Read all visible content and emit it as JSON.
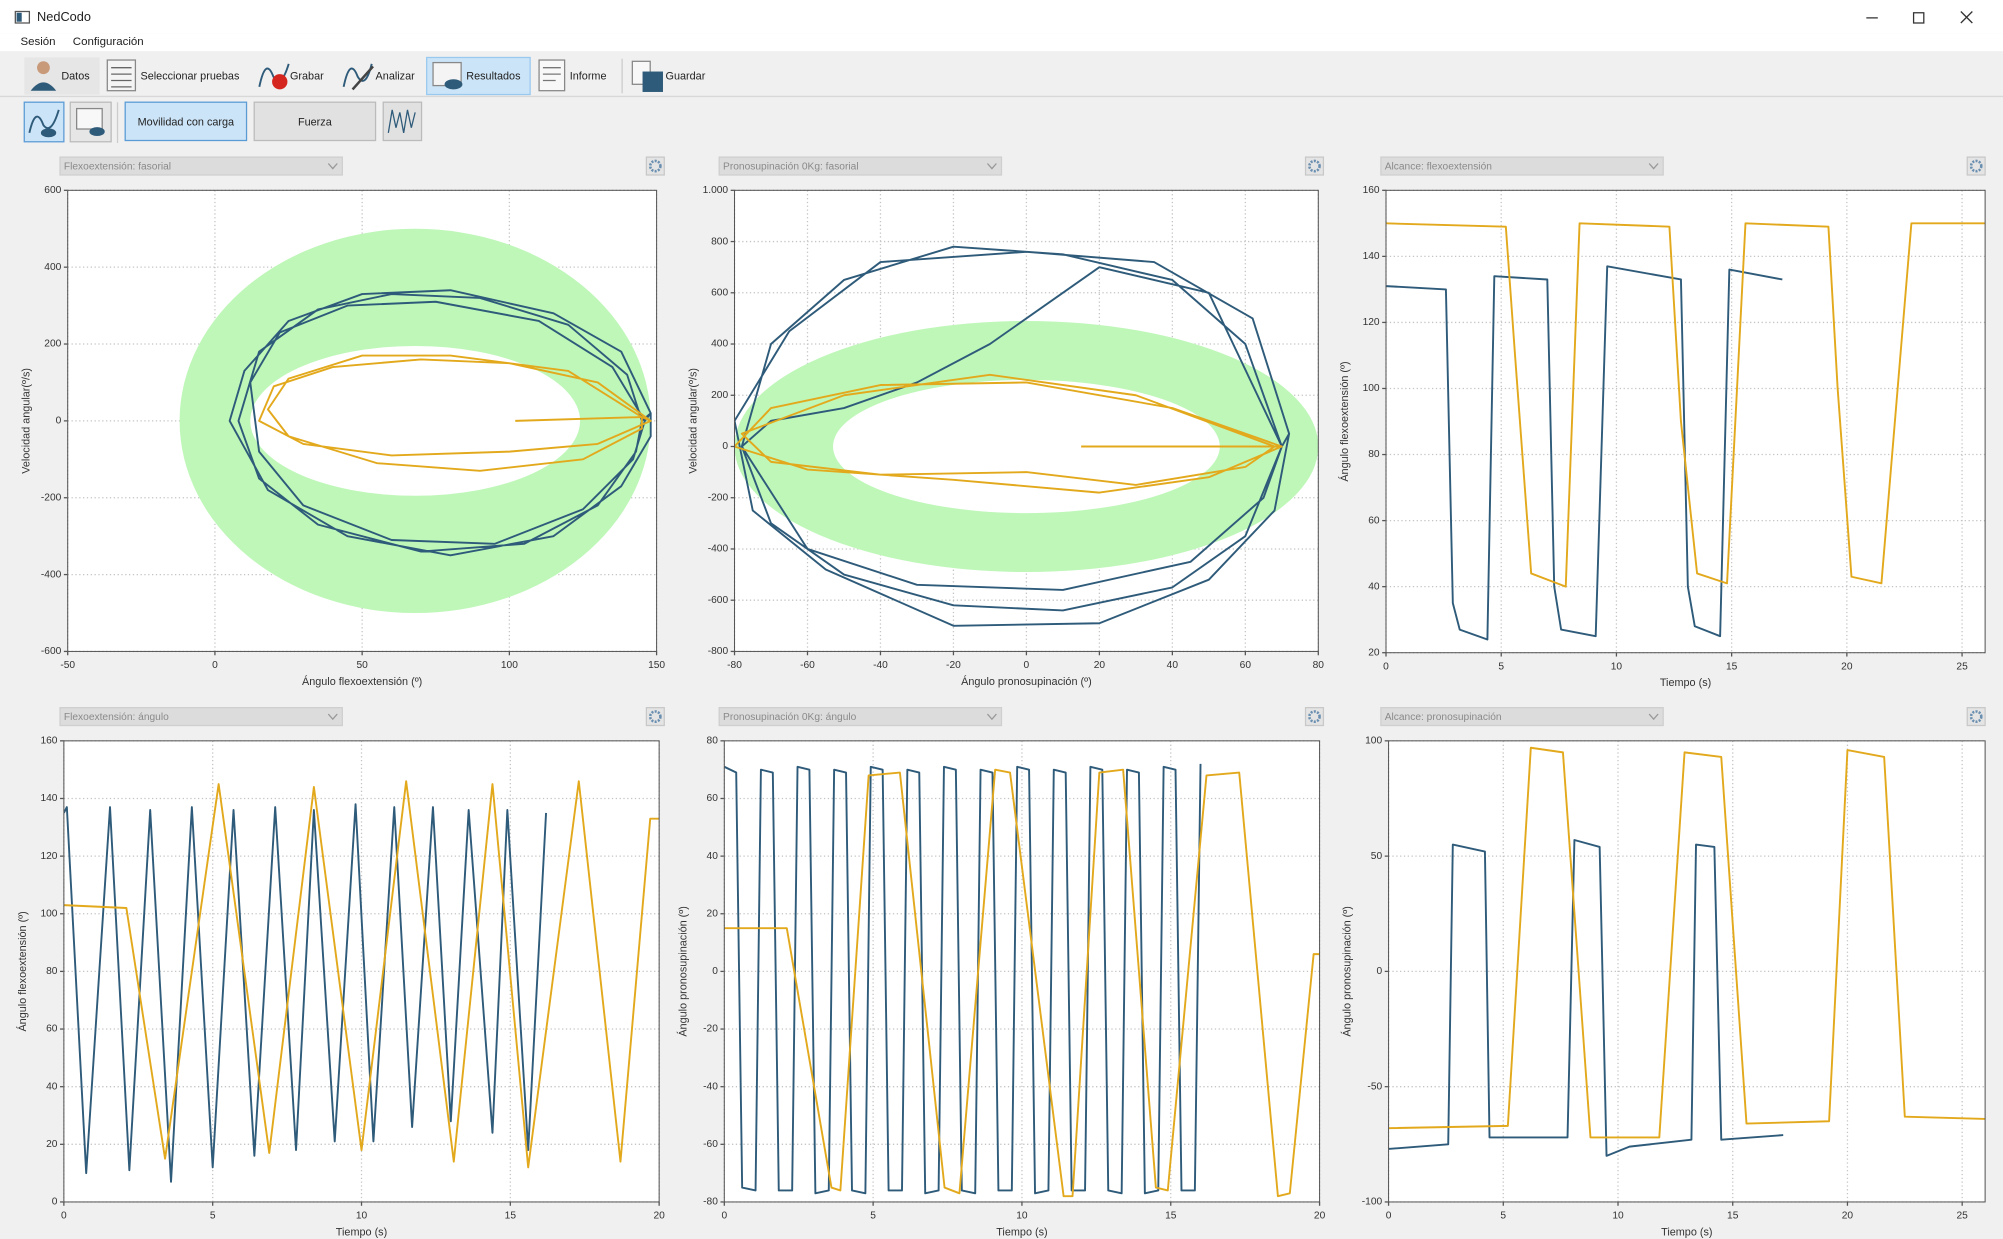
{
  "window": {
    "title": "NedCodo"
  },
  "menu": [
    "Sesión",
    "Configuración"
  ],
  "toolbar": [
    "Datos",
    "Seleccionar pruebas",
    "Grabar",
    "Analizar",
    "Resultados",
    "Informe",
    "Guardar"
  ],
  "tabs": [
    "Movilidad con carga",
    "Fuerza"
  ],
  "chart_data": [
    {
      "type": "line",
      "title": "Flexoextensión: fasorial",
      "x_label": "Ángulo flexoextensión (º)",
      "y_label": "Velocidad angular(º/s)",
      "xlim": [
        -50,
        150
      ],
      "xticks": [
        -50,
        0,
        50,
        100,
        150
      ],
      "ylim": [
        -600,
        600
      ],
      "yticks": [
        -600,
        -400,
        -200,
        0,
        200,
        400,
        600
      ],
      "grid": true,
      "reference_band": {
        "color": "#bff7b9",
        "center": [
          68,
          0
        ],
        "outer_radius": [
          80,
          500
        ],
        "inner_radius": [
          56,
          195
        ]
      },
      "series": [
        {
          "color": "#2f5b7a",
          "x": [
            145,
            140,
            120,
            90,
            60,
            35,
            15,
            8,
            15,
            35,
            70,
            105,
            130,
            143,
            145,
            148,
            138,
            115,
            80,
            50,
            25,
            10,
            5,
            18,
            45,
            80,
            115,
            138,
            148,
            148,
            146,
            135,
            110,
            75,
            45,
            22,
            12,
            15,
            30,
            60,
            95,
            125,
            142,
            146
          ],
          "values": [
            0,
            120,
            250,
            320,
            330,
            290,
            180,
            0,
            -150,
            -270,
            -340,
            -320,
            -220,
            -80,
            0,
            20,
            180,
            280,
            340,
            330,
            260,
            130,
            0,
            -180,
            -300,
            -350,
            -300,
            -170,
            -40,
            20,
            0,
            140,
            260,
            310,
            300,
            230,
            100,
            -80,
            -220,
            -310,
            -320,
            -230,
            -100,
            0
          ]
        },
        {
          "color": "#e3a91d",
          "x": [
            148,
            130,
            100,
            70,
            40,
            20,
            15,
            30,
            60,
            100,
            130,
            148,
            145,
            120,
            80,
            50,
            25,
            18,
            25,
            55,
            90,
            125,
            145,
            145,
            102
          ],
          "values": [
            0,
            100,
            150,
            160,
            140,
            90,
            0,
            -60,
            -90,
            -80,
            -60,
            0,
            10,
            130,
            170,
            170,
            110,
            30,
            -40,
            -110,
            -130,
            -100,
            -20,
            10,
            0
          ]
        }
      ]
    },
    {
      "type": "line",
      "title": "Pronosupinación 0Kg: fasorial",
      "x_label": "Ángulo pronosupinación (º)",
      "y_label": "Velocidad angular(º/s)",
      "xlim": [
        -80,
        80
      ],
      "xticks": [
        -80,
        -60,
        -40,
        -20,
        0,
        20,
        40,
        60,
        80
      ],
      "ylim": [
        -800,
        1000
      ],
      "yticks": [
        -800,
        -600,
        -400,
        -200,
        0,
        200,
        400,
        600,
        800,
        {
          "value": 1000,
          "label": "1.000"
        }
      ],
      "grid": true,
      "reference_band": {
        "color": "#bff7b9",
        "center": [
          0,
          0
        ],
        "outer_radius": [
          80,
          490
        ],
        "inner_radius": [
          53,
          260
        ]
      },
      "series": [
        {
          "color": "#2f5b7a",
          "x": [
            70,
            60,
            40,
            10,
            -20,
            -50,
            -70,
            -78,
            -70,
            -50,
            -20,
            10,
            40,
            60,
            70,
            72,
            62,
            35,
            0,
            -40,
            -65,
            -80,
            -75,
            -55,
            -20,
            20,
            50,
            68,
            72,
            70,
            50,
            20,
            -10,
            -30,
            -50,
            -70,
            -78,
            -60,
            -30,
            10,
            45,
            65,
            70
          ],
          "values": [
            0,
            400,
            650,
            750,
            780,
            650,
            400,
            0,
            -300,
            -500,
            -620,
            -640,
            -550,
            -350,
            0,
            50,
            500,
            720,
            760,
            720,
            450,
            100,
            -250,
            -480,
            -700,
            -690,
            -520,
            -250,
            50,
            0,
            600,
            700,
            400,
            250,
            150,
            100,
            0,
            -400,
            -540,
            -560,
            -450,
            -200,
            0
          ]
        },
        {
          "color": "#e3a91d",
          "x": [
            70,
            40,
            0,
            -40,
            -70,
            -80,
            -60,
            -20,
            20,
            50,
            70,
            68,
            30,
            -10,
            -50,
            -78,
            -70,
            -40,
            0,
            30,
            60,
            68,
            15
          ],
          "values": [
            0,
            150,
            250,
            240,
            150,
            0,
            -90,
            -130,
            -180,
            -120,
            0,
            0,
            200,
            280,
            200,
            50,
            -60,
            -110,
            -100,
            -150,
            -80,
            0,
            0
          ]
        }
      ]
    },
    {
      "type": "line",
      "title": "Alcance: flexoextensión",
      "x_label": "Tiempo (s)",
      "y_label": "Ángulo flexoextensión (º)",
      "xlim": [
        0,
        26
      ],
      "xticks": [
        0,
        5,
        10,
        15,
        20,
        25
      ],
      "ylim": [
        20,
        160
      ],
      "yticks": [
        20,
        40,
        60,
        80,
        100,
        120,
        140,
        160
      ],
      "grid": true,
      "series": [
        {
          "color": "#2f5b7a",
          "x": [
            0,
            2.6,
            2.9,
            3.2,
            4.4,
            4.7,
            7.0,
            7.3,
            7.6,
            9.1,
            9.6,
            12.8,
            13.1,
            13.4,
            14.5,
            14.9,
            17.2
          ],
          "values": [
            131,
            130,
            35,
            27,
            24,
            134,
            133,
            40,
            27,
            25,
            137,
            133,
            40,
            28,
            25,
            136,
            133
          ]
        },
        {
          "color": "#e3a91d",
          "x": [
            0,
            5.2,
            5.6,
            6.3,
            7.8,
            8.4,
            12.3,
            12.8,
            13.5,
            14.8,
            15.6,
            19.2,
            19.6,
            20.2,
            21.5,
            22.8,
            26
          ],
          "values": [
            150,
            149,
            110,
            44,
            40,
            150,
            149,
            90,
            44,
            41,
            150,
            149,
            100,
            43,
            41,
            150,
            150
          ]
        }
      ]
    },
    {
      "type": "line",
      "title": "Flexoextensión: ángulo",
      "x_label": "Tiempo (s)",
      "y_label": "Ángulo flexoextensión (º)",
      "xlim": [
        0,
        20
      ],
      "xticks": [
        0,
        5,
        10,
        15,
        20
      ],
      "ylim": [
        0,
        160
      ],
      "yticks": [
        0,
        20,
        40,
        60,
        80,
        100,
        120,
        140,
        160
      ],
      "grid": true,
      "series": [
        {
          "color": "#2f5b7a",
          "x": [
            0,
            0.1,
            0.75,
            1.55,
            2.2,
            2.9,
            3.6,
            4.3,
            5.0,
            5.7,
            6.4,
            7.1,
            7.8,
            8.4,
            9.1,
            9.8,
            10.4,
            11.1,
            11.7,
            12.4,
            13.0,
            13.6,
            14.4,
            14.9,
            15.6,
            16.2
          ],
          "values": [
            135,
            137,
            10,
            137,
            11,
            136,
            7,
            137,
            12,
            136,
            16,
            137,
            18,
            136,
            21,
            138,
            21,
            137,
            26,
            137,
            28,
            136,
            24,
            136,
            18,
            135
          ]
        },
        {
          "color": "#e3a91d",
          "x": [
            0,
            2.1,
            3.4,
            5.2,
            6.9,
            8.4,
            10.0,
            11.5,
            13.1,
            14.4,
            15.6,
            17.3,
            18.7,
            19.7,
            20
          ],
          "values": [
            103,
            102,
            15,
            145,
            17,
            144,
            18,
            146,
            14,
            145,
            12,
            146,
            14,
            133,
            133
          ]
        }
      ]
    },
    {
      "type": "line",
      "title": "Pronosupinación 0Kg: ángulo",
      "x_label": "Tiempo (s)",
      "y_label": "Ángulo pronosupinación (º)",
      "xlim": [
        0,
        20
      ],
      "xticks": [
        0,
        5,
        10,
        15,
        20
      ],
      "ylim": [
        -80,
        80
      ],
      "yticks": [
        -80,
        -60,
        -40,
        -20,
        0,
        20,
        40,
        60,
        80
      ],
      "grid": true,
      "series": [
        {
          "color": "#2f5b7a",
          "x": [
            0,
            0.4,
            0.6,
            1.05,
            1.23,
            1.63,
            1.83,
            2.28,
            2.46,
            2.86,
            3.06,
            3.51,
            3.69,
            4.09,
            4.29,
            4.74,
            4.92,
            5.32,
            5.52,
            5.97,
            6.15,
            6.55,
            6.75,
            7.2,
            7.38,
            7.78,
            7.98,
            8.43,
            8.61,
            9.01,
            9.21,
            9.66,
            9.84,
            10.24,
            10.44,
            10.89,
            11.07,
            11.47,
            11.67,
            12.12,
            12.3,
            12.7,
            12.9,
            13.35,
            13.53,
            13.93,
            14.13,
            14.58,
            14.76,
            15.16,
            15.36,
            15.81,
            16.0
          ],
          "values": [
            71,
            69,
            -75,
            -76,
            70,
            69,
            -76,
            -76,
            71,
            70,
            -77,
            -76,
            70,
            69,
            -76,
            -77,
            71,
            70,
            -76,
            -76,
            70,
            69,
            -77,
            -76,
            71,
            70,
            -76,
            -77,
            70,
            69,
            -76,
            -76,
            71,
            70,
            -77,
            -76,
            70,
            69,
            -76,
            -76,
            71,
            70,
            -76,
            -77,
            70,
            69,
            -77,
            -76,
            71,
            70,
            -76,
            -76,
            72
          ]
        },
        {
          "color": "#e3a91d",
          "x": [
            0,
            2.1,
            3.6,
            3.9,
            4.85,
            5.9,
            7.4,
            7.9,
            9.1,
            9.6,
            11.4,
            11.7,
            12.6,
            13.4,
            14.5,
            14.9,
            16.2,
            17.3,
            18.6,
            19.0,
            19.8,
            20
          ],
          "values": [
            15,
            15,
            -75,
            -76,
            68,
            69,
            -75,
            -77,
            70,
            69,
            -78,
            -78,
            69,
            70,
            -75,
            -76,
            68,
            69,
            -78,
            -77,
            6,
            6
          ]
        }
      ]
    },
    {
      "type": "line",
      "title": "Alcance: pronosupinación",
      "x_label": "Tiempo (s)",
      "y_label": "Ángulo pronosupinación (º)",
      "xlim": [
        0,
        26
      ],
      "xticks": [
        0,
        5,
        10,
        15,
        20,
        25
      ],
      "ylim": [
        -100,
        100
      ],
      "yticks": [
        -100,
        -50,
        0,
        50,
        100
      ],
      "grid": true,
      "series": [
        {
          "color": "#2f5b7a",
          "x": [
            0,
            2.6,
            2.8,
            4.2,
            4.4,
            7.8,
            8.1,
            9.2,
            9.5,
            10.5,
            13.2,
            13.4,
            14.2,
            14.5,
            17.2
          ],
          "values": [
            -77,
            -75,
            55,
            52,
            -72,
            -72,
            57,
            54,
            -80,
            -76,
            -73,
            55,
            54,
            -73,
            -71
          ]
        },
        {
          "color": "#e3a91d",
          "x": [
            0,
            5.2,
            6.2,
            7.6,
            8.8,
            11.8,
            12.9,
            14.5,
            15.6,
            19.2,
            20.0,
            21.6,
            22.5,
            26
          ],
          "values": [
            -68,
            -67,
            97,
            95,
            -72,
            -72,
            95,
            93,
            -66,
            -65,
            96,
            93,
            -63,
            -64
          ]
        }
      ]
    }
  ]
}
